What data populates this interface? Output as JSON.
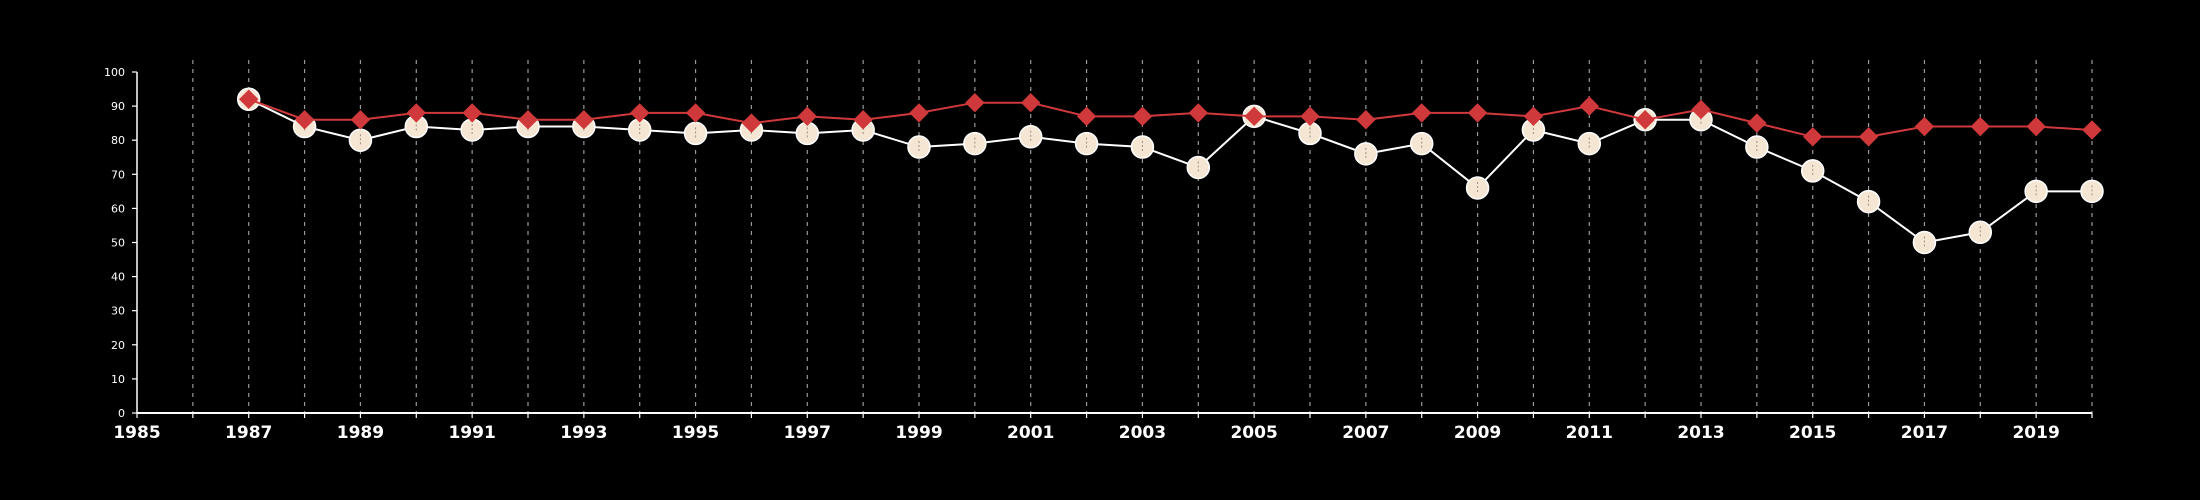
{
  "chart_data": {
    "type": "line",
    "title": "",
    "xlabel": "",
    "ylabel": "",
    "xlim": [
      1985,
      2020
    ],
    "ylim": [
      0,
      100
    ],
    "x_tick_labels": [
      "1985",
      "1987",
      "1989",
      "1991",
      "1993",
      "1995",
      "1997",
      "1999",
      "2001",
      "2003",
      "2005",
      "2007",
      "2009",
      "2011",
      "2013",
      "2015",
      "2017",
      "2019"
    ],
    "y_tick_labels": [
      "0",
      "10",
      "20",
      "30",
      "40",
      "50",
      "60",
      "70",
      "80",
      "90",
      "100"
    ],
    "vertical_grid": "dashed, every year",
    "background": "#000000",
    "series": [
      {
        "marker": "circle",
        "color": "#f5e6d3",
        "line_color": "#ffffff",
        "x": [
          1987,
          1988,
          1989,
          1990,
          1991,
          1992,
          1993,
          1994,
          1995,
          1996,
          1997,
          1998,
          1999,
          2000,
          2001,
          2002,
          2003,
          2004,
          2005,
          2006,
          2007,
          2008,
          2009,
          2010,
          2011,
          2012,
          2013,
          2014,
          2015,
          2016,
          2017,
          2018,
          2019,
          2020
        ],
        "values": [
          92,
          84,
          80,
          84,
          83,
          84,
          84,
          83,
          82,
          83,
          82,
          83,
          78,
          79,
          81,
          79,
          78,
          72,
          87,
          82,
          76,
          79,
          66,
          83,
          79,
          86,
          86,
          78,
          71,
          62,
          50,
          53,
          65,
          65
        ]
      },
      {
        "marker": "diamond",
        "color": "#d0393b",
        "line_color": "#d0393b",
        "x": [
          1987,
          1988,
          1989,
          1990,
          1991,
          1992,
          1993,
          1994,
          1995,
          1996,
          1997,
          1998,
          1999,
          2000,
          2001,
          2002,
          2003,
          2004,
          2005,
          2006,
          2007,
          2008,
          2009,
          2010,
          2011,
          2012,
          2013,
          2014,
          2015,
          2016,
          2017,
          2018,
          2019,
          2020
        ],
        "values": [
          92,
          86,
          86,
          88,
          88,
          86,
          86,
          88,
          88,
          85,
          87,
          86,
          88,
          91,
          91,
          87,
          87,
          88,
          87,
          87,
          86,
          88,
          88,
          87,
          90,
          86,
          89,
          85,
          81,
          81,
          84,
          84,
          84,
          83
        ]
      }
    ]
  }
}
